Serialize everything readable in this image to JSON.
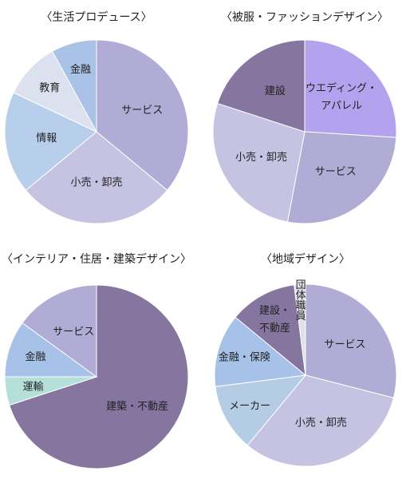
{
  "chart_data": [
    {
      "type": "pie",
      "title": "〈生活プロデュース〉",
      "categories": [
        "サービス",
        "小売・卸売",
        "情報",
        "教育",
        "金融"
      ],
      "values": [
        36,
        28,
        18,
        10,
        8
      ],
      "colors": [
        "#b0acd6",
        "#c6c3e2",
        "#b8cfec",
        "#dbe1ee",
        "#a9c2e6"
      ]
    },
    {
      "type": "pie",
      "title": "〈被服・ファッションデザイン〉",
      "categories": [
        "ウエディング・\nアパレル",
        "サービス",
        "小売・卸売",
        "建設"
      ],
      "values": [
        26,
        27,
        27,
        20
      ],
      "colors": [
        "#b3a3ee",
        "#b0acd6",
        "#c6c3e2",
        "#85759f"
      ]
    },
    {
      "type": "pie",
      "title": "〈インテリア・住居・建築デザイン〉",
      "categories": [
        "建築・不動産",
        "運輸",
        "金融",
        "サービス"
      ],
      "values": [
        70,
        5,
        10,
        15
      ],
      "colors": [
        "#85759f",
        "#b5e0da",
        "#a6c2e8",
        "#b0acd6"
      ]
    },
    {
      "type": "pie",
      "title": "〈地域デザイン〉",
      "categories": [
        "サービス",
        "小売・卸売",
        "メーカー",
        "金融・保険",
        "建設・\n不動産",
        "団体職員"
      ],
      "values": [
        29,
        32,
        12,
        13,
        12,
        2
      ],
      "colors": [
        "#b0acd6",
        "#c6c3e2",
        "#b5cde4",
        "#a6c2e8",
        "#85759f",
        "#e0e0ea"
      ]
    }
  ]
}
